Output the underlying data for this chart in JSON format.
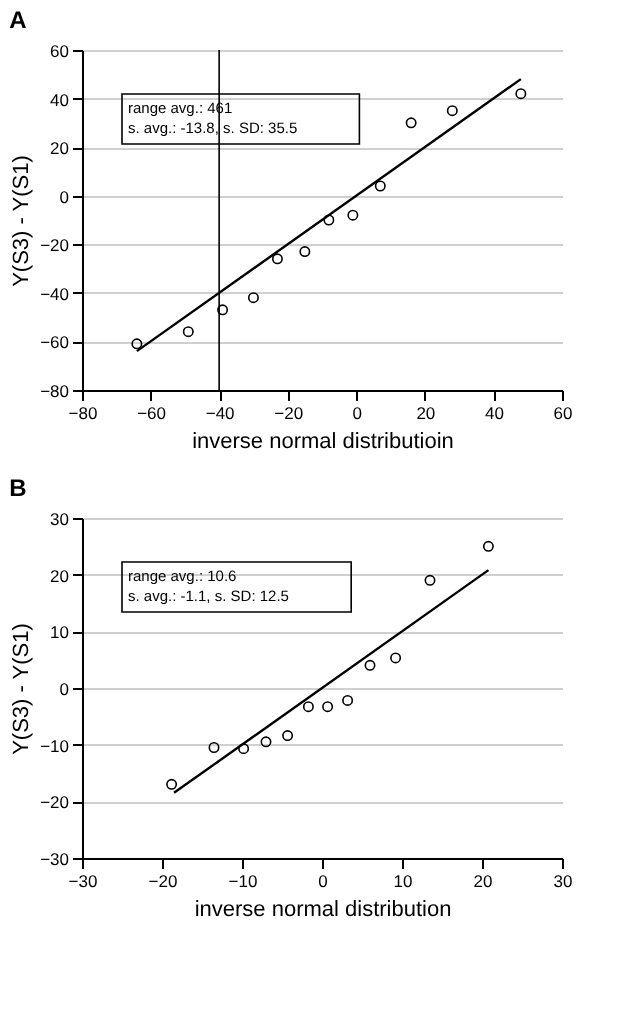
{
  "chart_data": [
    {
      "type": "scatter",
      "title": "A",
      "xlabel": "inverse normal distributioin",
      "ylabel": "Y(S3) - Y(S1)",
      "xlim": [
        -80,
        60
      ],
      "xticks": [
        -80,
        -60,
        -40,
        -20,
        0,
        20,
        40,
        60
      ],
      "ylim": [
        -80,
        60
      ],
      "yticks": [
        -80,
        -60,
        -40,
        -20,
        0,
        20,
        40,
        60
      ],
      "grid": "y",
      "marker": "circle",
      "series": [
        {
          "color": "#000000",
          "x": [
            -64,
            -49,
            -39,
            -30,
            -23,
            -15,
            -8,
            -1,
            7,
            16,
            28,
            48
          ],
          "values": [
            -61,
            -56,
            -47,
            -42,
            -26,
            -23,
            -10,
            -8,
            4,
            30,
            35,
            42
          ]
        },
        {
          "type": "line",
          "color": "#000000",
          "marker": "none",
          "x": [
            -64,
            48
          ],
          "values": [
            -64,
            48
          ]
        }
      ],
      "ref_lines": [
        {
          "axis": "x",
          "value": -40,
          "color": "#000000"
        }
      ],
      "annotations": [
        "range avg.: 461",
        "s. avg.: -13.8, s. SD: 35.5"
      ]
    },
    {
      "type": "scatter",
      "title": "B",
      "xlabel": "inverse normal distribution",
      "ylabel": "Y(S3) - Y(S1)",
      "xlim": [
        -30,
        30
      ],
      "xticks": [
        -30,
        -20,
        -10,
        0,
        10,
        20,
        30
      ],
      "ylim": [
        -30,
        30
      ],
      "yticks": [
        -30,
        -20,
        -10,
        0,
        10,
        20,
        30
      ],
      "grid": "y",
      "marker": "circle",
      "series": [
        {
          "color": "#000000",
          "x": [
            -18.8,
            -13.5,
            -9.8,
            -7,
            -4.3,
            -1.7,
            0.7,
            3.2,
            6,
            9.2,
            13.5,
            20.8
          ],
          "values": [
            -17,
            -10.5,
            -10.7,
            -9.5,
            -8.4,
            -3.3,
            -3.3,
            -2.2,
            4,
            5.3,
            19,
            25
          ]
        },
        {
          "type": "line",
          "color": "#000000",
          "marker": "none",
          "x": [
            -18.5,
            20.8
          ],
          "values": [
            -18.5,
            20.8
          ]
        }
      ],
      "annotations": [
        "range avg.: 10.6",
        "s. avg.: -1.1, s. SD: 12.5"
      ]
    }
  ]
}
